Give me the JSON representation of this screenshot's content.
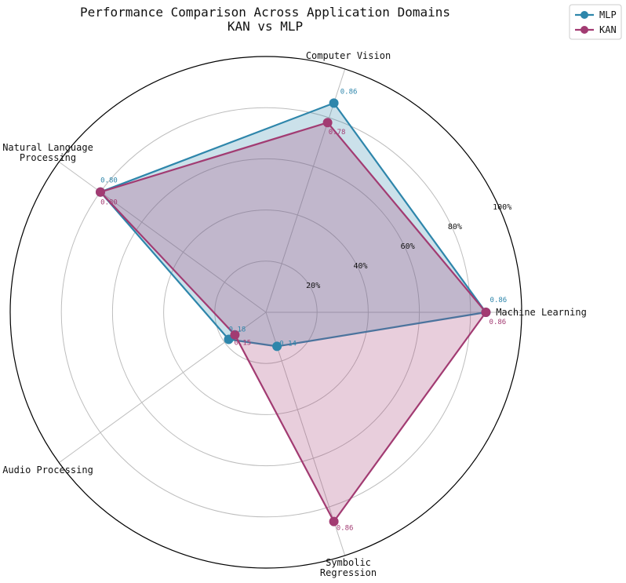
{
  "chart_data": {
    "type": "radar",
    "title": "Performance Comparison Across Application Domains",
    "subtitle": "KAN vs MLP",
    "categories": [
      "Machine Learning",
      "Computer Vision",
      "Natural Language\nProcessing",
      "Audio Processing",
      "Symbolic\nRegression"
    ],
    "category_angles_deg": [
      0,
      72,
      144,
      216,
      288
    ],
    "radial_ticks": [
      0.2,
      0.4,
      0.6,
      0.8,
      1.0
    ],
    "radial_tick_labels": [
      "20%",
      "40%",
      "60%",
      "80%",
      "100%"
    ],
    "rlim": [
      0,
      1.0
    ],
    "grid": true,
    "legend_position": "top-right",
    "series": [
      {
        "name": "MLP",
        "color": "#2e86ab",
        "values": [
          0.86,
          0.86,
          0.8,
          0.18,
          0.14
        ],
        "value_labels": [
          "0.86",
          "0.86",
          "0.80",
          "0.18",
          "0.14"
        ]
      },
      {
        "name": "KAN",
        "color": "#a23b72",
        "values": [
          0.86,
          0.78,
          0.8,
          0.15,
          0.86
        ],
        "value_labels": [
          "0.86",
          "0.78",
          "0.80",
          "0.15",
          "0.86"
        ]
      }
    ]
  }
}
